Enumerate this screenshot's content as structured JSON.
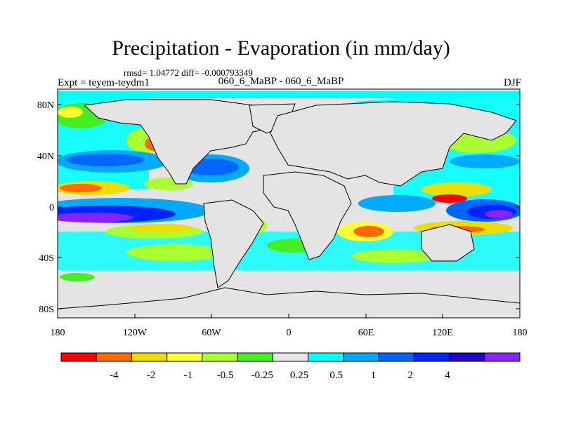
{
  "title": "Precipitation - Evaporation (in mm/day)",
  "stats": "rmsd= 1.04772 diff= -0.000793349",
  "experiment": "Expt = teyem-teydm1",
  "subtitle": "060_6_MaBP - 060_6_MaBP",
  "season": "DJF",
  "map": {
    "lon_range": [
      -180,
      180
    ],
    "lat_range": [
      -90,
      90
    ],
    "x_ticks": [
      "180",
      "120W",
      "60W",
      "0",
      "60E",
      "120E",
      "180"
    ],
    "y_ticks": [
      "80N",
      "40N",
      "0",
      "40S",
      "80S"
    ]
  },
  "colorbar": {
    "colors": [
      "#ff0000",
      "#ff6a00",
      "#eedd00",
      "#ffff33",
      "#aaff33",
      "#44ee22",
      "#e6e6e6",
      "#00ffff",
      "#00aaff",
      "#0066ff",
      "#0022ff",
      "#2200cc",
      "#8822ff"
    ],
    "labels": [
      "-4",
      "-2",
      "-1",
      "-0.5",
      "-0.25",
      "0.25",
      "0.5",
      "1",
      "2",
      "4"
    ]
  },
  "colors": {
    "land_mask": "#e4e4e4",
    "coastline": "#000000"
  }
}
